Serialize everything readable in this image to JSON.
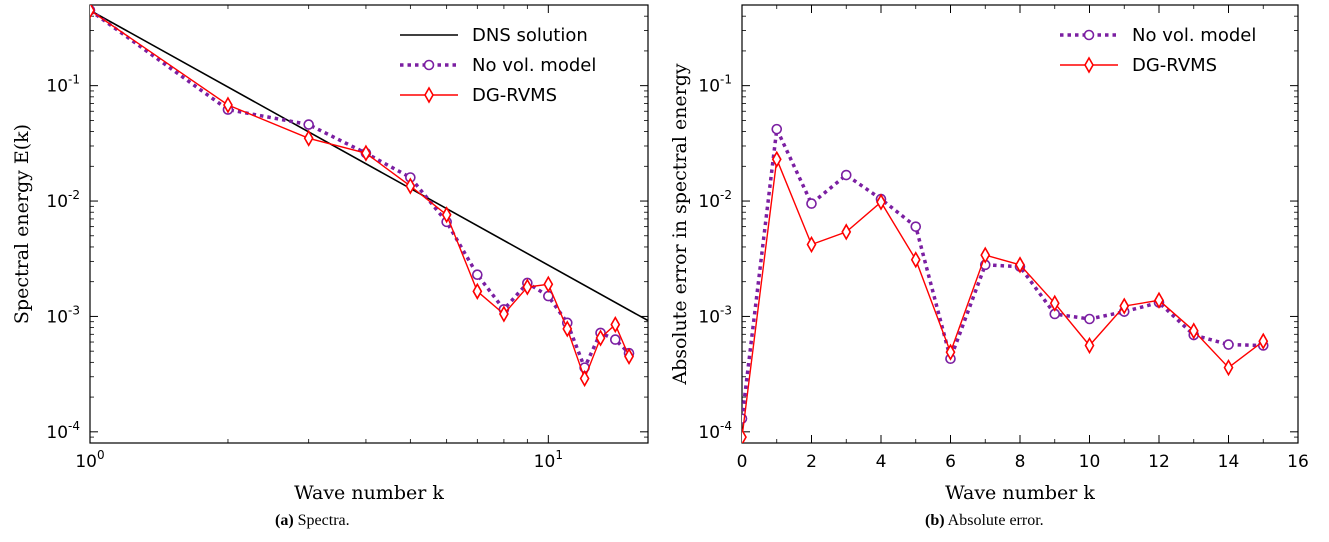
{
  "captions": [
    {
      "num": "(a)",
      "text": " Spectra."
    },
    {
      "num": "(b)",
      "text": " Absolute error."
    }
  ],
  "chart_data": [
    {
      "type": "line",
      "title": "",
      "xlabel": "Wave number k",
      "ylabel": "Spectral energy E(k)",
      "xscale": "log",
      "yscale": "log",
      "xlim": [
        1,
        16.5
      ],
      "ylim": [
        8e-05,
        0.5
      ],
      "x_ticks": [
        {
          "value": 1,
          "label": "10",
          "exp": "0"
        },
        {
          "value": 10,
          "label": "10",
          "exp": "1"
        }
      ],
      "y_ticks": [
        {
          "value": 0.1,
          "label": "10",
          "exp": "-1"
        },
        {
          "value": 0.01,
          "label": "10",
          "exp": "-2"
        },
        {
          "value": 0.001,
          "label": "10",
          "exp": "-3"
        },
        {
          "value": 0.0001,
          "label": "10",
          "exp": "-4"
        }
      ],
      "grid": false,
      "legend_position": "top-right",
      "series": [
        {
          "name": "DNS solution",
          "color": "#000000",
          "style": "solid",
          "marker": "none",
          "x": [
            1,
            16.5
          ],
          "y": [
            0.45,
            0.00092
          ]
        },
        {
          "name": "No vol. model",
          "color": "#7b1fa2",
          "style": "dotted",
          "marker": "circle",
          "x": [
            1,
            2,
            3,
            4,
            5,
            6,
            7,
            8,
            9,
            10,
            11,
            12,
            13,
            14,
            15
          ],
          "y": [
            0.45,
            0.062,
            0.046,
            0.026,
            0.016,
            0.0066,
            0.0023,
            0.00115,
            0.00195,
            0.0015,
            0.00088,
            0.00036,
            0.00072,
            0.00063,
            0.00048
          ]
        },
        {
          "name": "DG-RVMS",
          "color": "#ff0000",
          "style": "solid",
          "marker": "diamond",
          "x": [
            1,
            2,
            3,
            4,
            5,
            6,
            7,
            8,
            9,
            10,
            11,
            12,
            13,
            14,
            15
          ],
          "y": [
            0.45,
            0.068,
            0.035,
            0.026,
            0.0135,
            0.0076,
            0.00165,
            0.00105,
            0.0018,
            0.0019,
            0.00078,
            0.00029,
            0.00065,
            0.00085,
            0.00045
          ]
        }
      ]
    },
    {
      "type": "line",
      "title": "",
      "xlabel": "Wave number k",
      "ylabel": "Absolute error in spectral energy",
      "xscale": "linear",
      "yscale": "log",
      "xlim": [
        0,
        16
      ],
      "ylim": [
        8e-05,
        0.5
      ],
      "x_ticks": [
        {
          "value": 0,
          "label": "0"
        },
        {
          "value": 2,
          "label": "2"
        },
        {
          "value": 4,
          "label": "4"
        },
        {
          "value": 6,
          "label": "6"
        },
        {
          "value": 8,
          "label": "8"
        },
        {
          "value": 10,
          "label": "10"
        },
        {
          "value": 12,
          "label": "12"
        },
        {
          "value": 14,
          "label": "14"
        },
        {
          "value": 16,
          "label": "16"
        }
      ],
      "y_ticks": [
        {
          "value": 0.1,
          "label": "10",
          "exp": "-1"
        },
        {
          "value": 0.01,
          "label": "10",
          "exp": "-2"
        },
        {
          "value": 0.001,
          "label": "10",
          "exp": "-3"
        },
        {
          "value": 0.0001,
          "label": "10",
          "exp": "-4"
        }
      ],
      "grid": false,
      "legend_position": "top-right",
      "series": [
        {
          "name": "No vol. model",
          "color": "#7b1fa2",
          "style": "dotted",
          "marker": "circle",
          "x": [
            0,
            1,
            2,
            3,
            4,
            5,
            6,
            7,
            8,
            9,
            10,
            11,
            12,
            13,
            14,
            15
          ],
          "y": [
            0.00013,
            0.042,
            0.0095,
            0.0168,
            0.0104,
            0.006,
            0.00043,
            0.0028,
            0.0027,
            0.00105,
            0.00095,
            0.0011,
            0.00132,
            0.00069,
            0.00057,
            0.00056
          ]
        },
        {
          "name": "DG-RVMS",
          "color": "#ff0000",
          "style": "solid",
          "marker": "diamond",
          "x": [
            0,
            1,
            2,
            3,
            4,
            5,
            6,
            7,
            8,
            9,
            10,
            11,
            12,
            13,
            14,
            15
          ],
          "y": [
            9e-05,
            0.023,
            0.0042,
            0.0054,
            0.0098,
            0.0031,
            0.00049,
            0.0034,
            0.0028,
            0.0013,
            0.00056,
            0.00123,
            0.00138,
            0.00075,
            0.00036,
            0.00061
          ]
        }
      ]
    }
  ]
}
